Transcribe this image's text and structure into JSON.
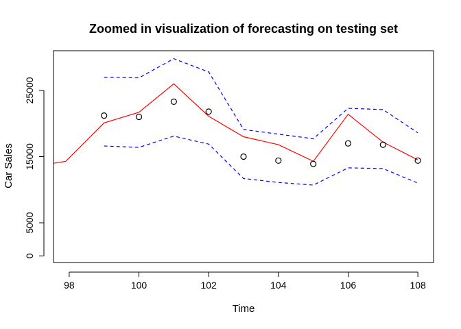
{
  "chart_data": {
    "type": "line",
    "title": "Zoomed in visualization of forecasting on testing set",
    "xlabel": "Time",
    "ylabel": "Car Sales",
    "xlim": [
      97.55,
      108.45
    ],
    "ylim": [
      -1000,
      31000
    ],
    "x_ticks": [
      98,
      100,
      102,
      104,
      106,
      108
    ],
    "x_tick_labels": [
      "98",
      "100",
      "102",
      "104",
      "106",
      "108"
    ],
    "y_ticks": [
      0,
      5000,
      15000,
      25000
    ],
    "y_tick_labels": [
      "0",
      "5000",
      "15000",
      "25000"
    ],
    "grid": false,
    "legend": "none",
    "series": [
      {
        "role": "forecast",
        "style": "line",
        "color": "#ff0000",
        "x": [
          97.5,
          97.9,
          99,
          100,
          101,
          102,
          103,
          104,
          105,
          106,
          107,
          108
        ],
        "y": [
          13950,
          14300,
          20100,
          21700,
          26000,
          21100,
          18000,
          16800,
          14300,
          21400,
          17200,
          14500
        ]
      },
      {
        "role": "upper-interval",
        "style": "dashed",
        "color": "#0000ff",
        "x": [
          99,
          100,
          101,
          102,
          103,
          104,
          105,
          106,
          107,
          108
        ],
        "y": [
          27000,
          26900,
          29800,
          27800,
          19100,
          18400,
          17700,
          22300,
          22100,
          18600
        ]
      },
      {
        "role": "lower-interval",
        "style": "dashed",
        "color": "#0000ff",
        "x": [
          99,
          100,
          101,
          102,
          103,
          104,
          105,
          106,
          107,
          108
        ],
        "y": [
          16600,
          16400,
          18100,
          16900,
          11700,
          11100,
          10700,
          13300,
          13200,
          11000
        ]
      },
      {
        "role": "actual",
        "style": "points",
        "color": "#000000",
        "x": [
          99,
          100,
          101,
          102,
          103,
          104,
          105,
          106,
          107,
          108
        ],
        "y": [
          21200,
          21000,
          23300,
          21800,
          15000,
          14400,
          13900,
          17000,
          16800,
          14400
        ]
      }
    ]
  }
}
